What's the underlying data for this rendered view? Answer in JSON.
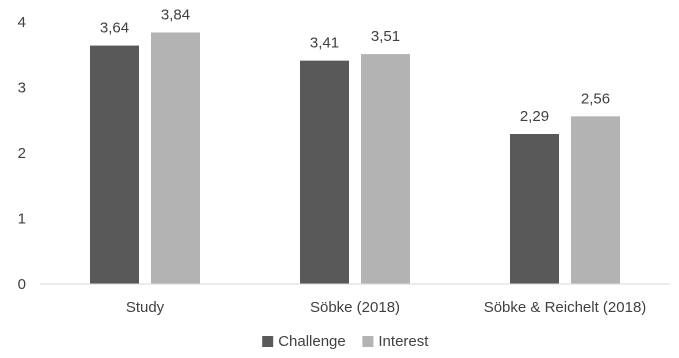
{
  "chart_data": {
    "type": "bar",
    "categories": [
      "Study",
      "Söbke (2018)",
      "Söbke & Reichelt (2018)"
    ],
    "series": [
      {
        "name": "Challenge",
        "values": [
          3.64,
          3.41,
          2.29
        ],
        "labels": [
          "3,64",
          "3,41",
          "2,29"
        ],
        "color": "#595959"
      },
      {
        "name": "Interest",
        "values": [
          3.84,
          3.51,
          2.56
        ],
        "labels": [
          "3,84",
          "3,51",
          "2,56"
        ],
        "color": "#b3b3b3"
      }
    ],
    "yticks": [
      0,
      1,
      2,
      3,
      4
    ],
    "ylim": [
      0,
      4
    ],
    "grid": false,
    "legend_position": "bottom"
  }
}
